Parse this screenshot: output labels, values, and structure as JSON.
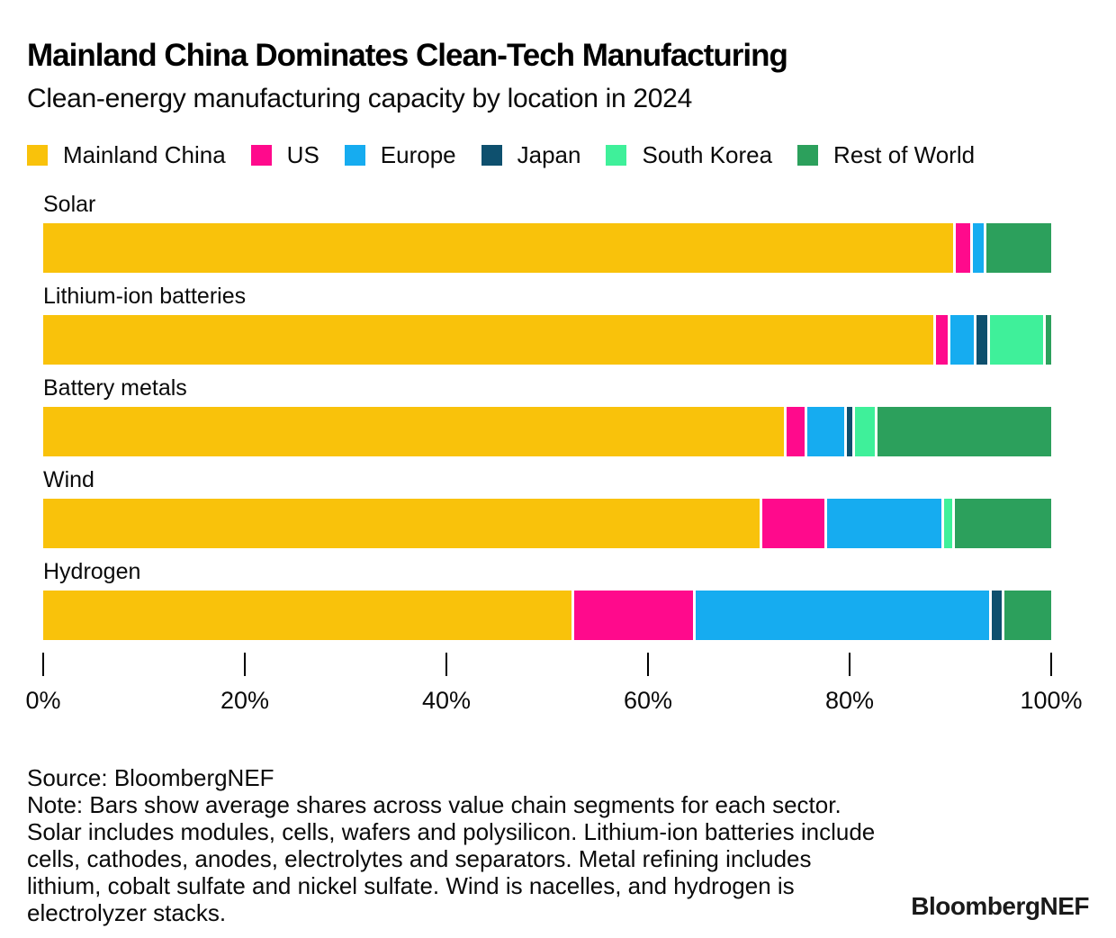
{
  "header": {
    "title": "Mainland China Dominates Clean-Tech Manufacturing",
    "subtitle": "Clean-energy manufacturing capacity by location in 2024"
  },
  "chart_data": {
    "type": "bar",
    "orientation": "horizontal",
    "stacked": true,
    "title": "Mainland China Dominates Clean-Tech Manufacturing",
    "subtitle": "Clean-energy manufacturing capacity by location in 2024",
    "categories": [
      "Solar",
      "Lithium-ion batteries",
      "Battery metals",
      "Wind",
      "Hydrogen"
    ],
    "series": [
      {
        "name": "Mainland China",
        "color": "#F9C20B",
        "values": [
          91.0,
          89.5,
          74.5,
          71.8,
          53.0
        ]
      },
      {
        "name": "US",
        "color": "#FF0A8C",
        "values": [
          1.4,
          1.2,
          1.8,
          6.3,
          11.9
        ]
      },
      {
        "name": "Europe",
        "color": "#16ACF0",
        "values": [
          1.1,
          2.3,
          3.7,
          11.4,
          29.4
        ]
      },
      {
        "name": "Japan",
        "color": "#0E506E",
        "values": [
          0,
          1.1,
          0.5,
          0,
          1.0
        ]
      },
      {
        "name": "South Korea",
        "color": "#3FF09A",
        "values": [
          0,
          5.4,
          2.0,
          0.8,
          0
        ]
      },
      {
        "name": "Rest of World",
        "color": "#2CA05C",
        "values": [
          6.5,
          0.5,
          17.5,
          9.7,
          4.7
        ]
      }
    ],
    "xlim": [
      0,
      100
    ],
    "x_ticks": [
      "0%",
      "20%",
      "40%",
      "60%",
      "80%",
      "100%"
    ],
    "x_tick_values": [
      0,
      20,
      40,
      60,
      80,
      100
    ],
    "xlabel": "",
    "ylabel": "",
    "grid": false,
    "legend_position": "top"
  },
  "footer": {
    "source": "Source: BloombergNEF",
    "note": "Note: Bars show average shares across value chain segments for each sector. Solar includes modules, cells, wafers and polysilicon. Lithium-ion batteries include cells, cathodes, anodes, electrolytes and separators. Metal refining includes lithium, cobalt sulfate and nickel sulfate. Wind is nacelles, and hydrogen is electrolyzer stacks.",
    "logo": "BloombergNEF"
  }
}
